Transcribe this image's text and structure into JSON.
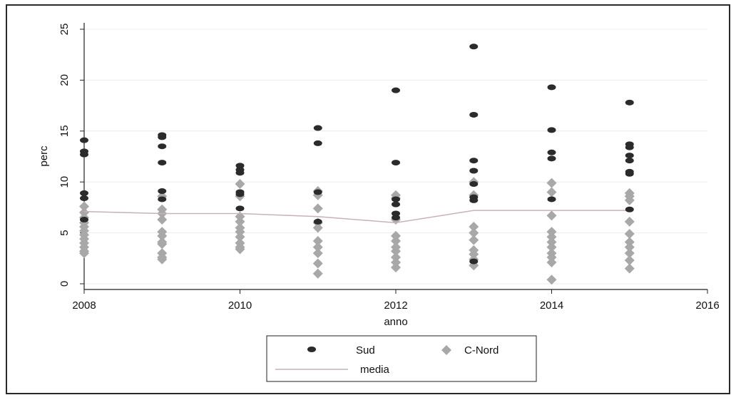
{
  "chart_data": {
    "type": "scatter",
    "title": "",
    "xlabel": "anno",
    "ylabel": "perc",
    "xlim": [
      2008,
      2016
    ],
    "ylim": [
      0,
      25
    ],
    "x_ticks": [
      2008,
      2010,
      2012,
      2014,
      2016
    ],
    "y_ticks": [
      0,
      5,
      10,
      15,
      20,
      25
    ],
    "grid": "horizontal",
    "legend_position": "bottom",
    "series": [
      {
        "name": "Sud",
        "marker": "filled-oval",
        "color": "#2b2b2b",
        "points": [
          [
            2008,
            14.1
          ],
          [
            2008,
            13.0
          ],
          [
            2008,
            12.7
          ],
          [
            2008,
            8.9
          ],
          [
            2008,
            8.4
          ],
          [
            2008,
            6.3
          ],
          [
            2009,
            14.6
          ],
          [
            2009,
            14.4
          ],
          [
            2009,
            13.5
          ],
          [
            2009,
            11.9
          ],
          [
            2009,
            9.1
          ],
          [
            2009,
            8.3
          ],
          [
            2010,
            11.6
          ],
          [
            2010,
            11.2
          ],
          [
            2010,
            10.9
          ],
          [
            2010,
            9.0
          ],
          [
            2010,
            8.8
          ],
          [
            2010,
            7.4
          ],
          [
            2011,
            15.3
          ],
          [
            2011,
            13.8
          ],
          [
            2011,
            9.0
          ],
          [
            2011,
            6.1
          ],
          [
            2012,
            19.0
          ],
          [
            2012,
            11.9
          ],
          [
            2012,
            8.3
          ],
          [
            2012,
            7.8
          ],
          [
            2012,
            6.9
          ],
          [
            2012,
            6.5
          ],
          [
            2013,
            23.3
          ],
          [
            2013,
            16.6
          ],
          [
            2013,
            12.1
          ],
          [
            2013,
            11.1
          ],
          [
            2013,
            9.8
          ],
          [
            2013,
            8.5
          ],
          [
            2013,
            8.2
          ],
          [
            2013,
            2.2
          ],
          [
            2014,
            19.3
          ],
          [
            2014,
            15.1
          ],
          [
            2014,
            12.9
          ],
          [
            2014,
            12.3
          ],
          [
            2014,
            8.3
          ],
          [
            2015,
            17.8
          ],
          [
            2015,
            13.7
          ],
          [
            2015,
            13.4
          ],
          [
            2015,
            12.6
          ],
          [
            2015,
            12.1
          ],
          [
            2015,
            11.0
          ],
          [
            2015,
            10.8
          ],
          [
            2015,
            7.3
          ]
        ]
      },
      {
        "name": "C-Nord",
        "marker": "diamond",
        "color": "#a8a8a8",
        "points": [
          [
            2008,
            7.6
          ],
          [
            2008,
            7.0
          ],
          [
            2008,
            6.5
          ],
          [
            2008,
            6.0
          ],
          [
            2008,
            5.6
          ],
          [
            2008,
            5.2
          ],
          [
            2008,
            4.8
          ],
          [
            2008,
            4.4
          ],
          [
            2008,
            4.0
          ],
          [
            2008,
            3.6
          ],
          [
            2008,
            3.2
          ],
          [
            2008,
            3.0
          ],
          [
            2009,
            8.6
          ],
          [
            2009,
            7.3
          ],
          [
            2009,
            6.9
          ],
          [
            2009,
            6.3
          ],
          [
            2009,
            5.1
          ],
          [
            2009,
            4.7
          ],
          [
            2009,
            4.1
          ],
          [
            2009,
            3.9
          ],
          [
            2009,
            3.0
          ],
          [
            2009,
            2.6
          ],
          [
            2009,
            2.4
          ],
          [
            2010,
            9.8
          ],
          [
            2010,
            8.6
          ],
          [
            2010,
            6.6
          ],
          [
            2010,
            6.1
          ],
          [
            2010,
            5.5
          ],
          [
            2010,
            5.1
          ],
          [
            2010,
            4.6
          ],
          [
            2010,
            4.0
          ],
          [
            2010,
            3.6
          ],
          [
            2010,
            3.4
          ],
          [
            2011,
            9.1
          ],
          [
            2011,
            8.7
          ],
          [
            2011,
            7.4
          ],
          [
            2011,
            6.0
          ],
          [
            2011,
            5.5
          ],
          [
            2011,
            4.2
          ],
          [
            2011,
            3.6
          ],
          [
            2011,
            3.0
          ],
          [
            2011,
            2.0
          ],
          [
            2011,
            1.0
          ],
          [
            2012,
            8.7
          ],
          [
            2012,
            8.4
          ],
          [
            2012,
            6.3
          ],
          [
            2012,
            4.7
          ],
          [
            2012,
            4.2
          ],
          [
            2012,
            3.6
          ],
          [
            2012,
            3.2
          ],
          [
            2012,
            2.6
          ],
          [
            2012,
            2.1
          ],
          [
            2012,
            1.6
          ],
          [
            2013,
            10.0
          ],
          [
            2013,
            8.7
          ],
          [
            2013,
            5.6
          ],
          [
            2013,
            5.0
          ],
          [
            2013,
            4.3
          ],
          [
            2013,
            3.3
          ],
          [
            2013,
            2.9
          ],
          [
            2013,
            2.4
          ],
          [
            2013,
            1.8
          ],
          [
            2014,
            9.9
          ],
          [
            2014,
            9.0
          ],
          [
            2014,
            6.7
          ],
          [
            2014,
            5.1
          ],
          [
            2014,
            4.6
          ],
          [
            2014,
            4.1
          ],
          [
            2014,
            3.6
          ],
          [
            2014,
            3.0
          ],
          [
            2014,
            2.6
          ],
          [
            2014,
            2.1
          ],
          [
            2014,
            0.4
          ],
          [
            2015,
            8.9
          ],
          [
            2015,
            8.6
          ],
          [
            2015,
            8.2
          ],
          [
            2015,
            6.1
          ],
          [
            2015,
            4.9
          ],
          [
            2015,
            4.1
          ],
          [
            2015,
            3.6
          ],
          [
            2015,
            3.0
          ],
          [
            2015,
            2.3
          ],
          [
            2015,
            1.5
          ]
        ]
      },
      {
        "name": "media",
        "marker": "line",
        "color": "#c7b2b8",
        "points": [
          [
            2008,
            7.1
          ],
          [
            2009,
            6.9
          ],
          [
            2010,
            6.9
          ],
          [
            2011,
            6.6
          ],
          [
            2012,
            6.0
          ],
          [
            2013,
            7.2
          ],
          [
            2014,
            7.2
          ],
          [
            2015,
            7.2
          ]
        ]
      }
    ]
  }
}
